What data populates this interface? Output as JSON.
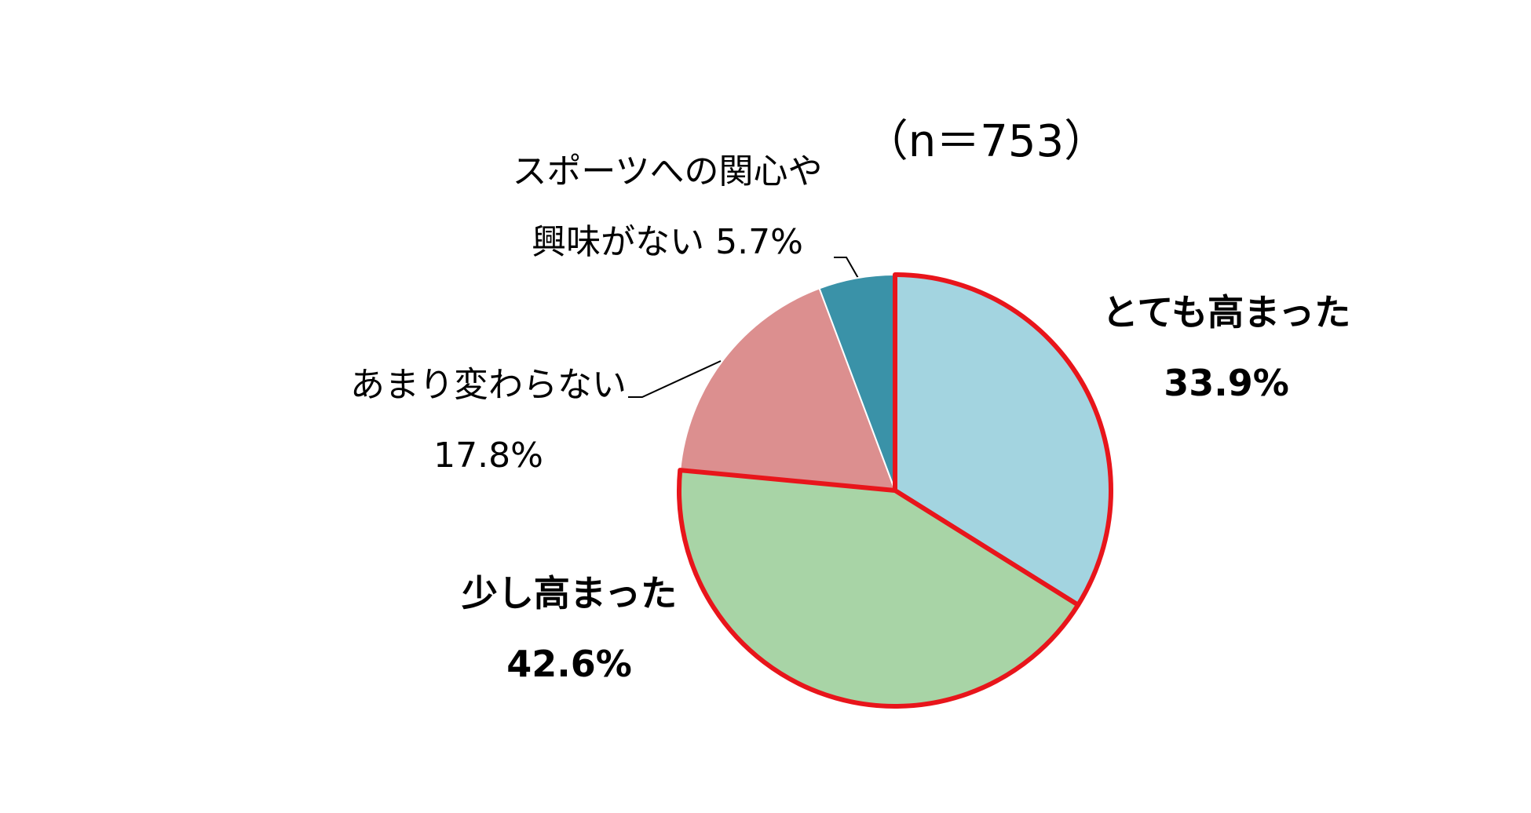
{
  "chart_data": {
    "type": "pie",
    "annotation": "（n＝753）",
    "categories": [
      "とても高まった",
      "少し高まった",
      "あまり変わらない",
      "スポーツへの関心や興味がない"
    ],
    "values": [
      33.9,
      42.6,
      17.8,
      5.7
    ],
    "value_labels": [
      "33.9%",
      "42.6%",
      "17.8%",
      "5.7%"
    ],
    "colors": [
      "#a3d4e0",
      "#a8d4a6",
      "#dc8f8f",
      "#3a92a8"
    ],
    "highlighted": [
      true,
      true,
      false,
      false
    ],
    "highlight_color": "#e8151b"
  }
}
